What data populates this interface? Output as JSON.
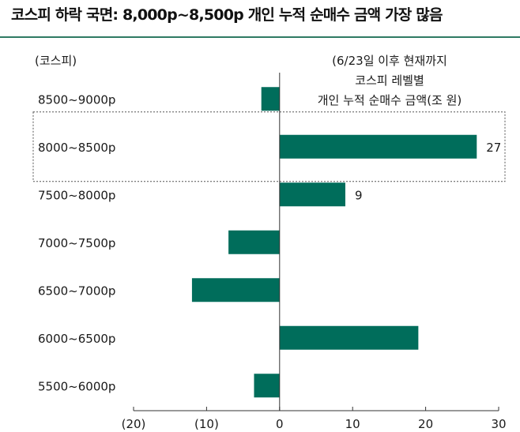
{
  "title": "코스피 하락 국면: 8,000p~8,500p 개인 누적 순매수 금액 가장 많음",
  "chart_data": {
    "type": "bar",
    "orientation": "horizontal",
    "title": "코스피 하락 국면: 8,000p~8,500p 개인 누적 순매수 금액 가장 많음",
    "category_axis_label": "(코스피)",
    "annotation_lines": [
      "(6/23일 이후 현재까지",
      "코스피 레벨별",
      "개인 누적 순매수 금액(조 원)"
    ],
    "categories": [
      "8500~9000p",
      "8000~8500p",
      "7500~8000p",
      "7000~7500p",
      "6500~7000p",
      "6000~6500p",
      "5500~6000p"
    ],
    "values": [
      -2.5,
      27,
      9,
      -7,
      -12,
      19,
      -3.5
    ],
    "data_labels": [
      "",
      "27",
      "9",
      "",
      "",
      "",
      ""
    ],
    "highlighted_category": "8000~8500p",
    "xlim": [
      -20,
      30
    ],
    "x_ticks": [
      -20,
      -10,
      0,
      10,
      20,
      30
    ],
    "x_tick_labels": [
      "(20)",
      "(10)",
      "0",
      "10",
      "20",
      "30"
    ],
    "bar_color": "#006d5b",
    "accent_color": "#2f7a63",
    "grid": false
  }
}
